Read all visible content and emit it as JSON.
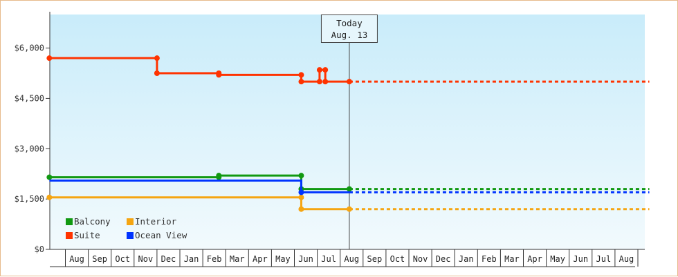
{
  "chart_data": {
    "type": "line",
    "step": true,
    "title": "",
    "xlabel": "",
    "ylabel": "",
    "ylim": [
      0,
      7000
    ],
    "y_ticks": [
      0,
      1500,
      3000,
      4500,
      6000
    ],
    "y_tick_labels": [
      "$0",
      "$1,500",
      "$3,000",
      "$4,500",
      "$6,000"
    ],
    "x_tick_labels": [
      "Aug",
      "Sep",
      "Oct",
      "Nov",
      "Dec",
      "Jan",
      "Feb",
      "Mar",
      "Apr",
      "May",
      "Jun",
      "Jul",
      "Aug",
      "Sep",
      "Oct",
      "Nov",
      "Dec",
      "Jan",
      "Feb",
      "Mar",
      "Apr",
      "May",
      "Jun",
      "Jul",
      "Aug"
    ],
    "today": {
      "line1": "Today",
      "line2": "Aug. 13",
      "x": 12.4
    },
    "legend": {
      "placement": "bottom-left",
      "columns": 2
    },
    "series": [
      {
        "name": "Balcony",
        "color": "#119911",
        "points": [
          [
            -0.7,
            2150
          ],
          [
            6.7,
            2150
          ],
          [
            6.7,
            2200
          ],
          [
            10.3,
            2200
          ],
          [
            10.3,
            1800
          ],
          [
            12.4,
            1800
          ]
        ],
        "markers": [
          [
            -0.7,
            2150
          ],
          [
            6.7,
            2150
          ],
          [
            6.7,
            2200
          ],
          [
            10.3,
            2200
          ],
          [
            10.3,
            1800
          ],
          [
            12.4,
            1800
          ]
        ],
        "projected": [
          [
            12.4,
            1800
          ],
          [
            25.5,
            1800
          ]
        ]
      },
      {
        "name": "Interior",
        "color": "#f5a512",
        "points": [
          [
            -0.7,
            1550
          ],
          [
            10.3,
            1550
          ],
          [
            10.3,
            1200
          ],
          [
            12.4,
            1200
          ]
        ],
        "markers": [
          [
            -0.7,
            1550
          ],
          [
            10.3,
            1550
          ],
          [
            10.3,
            1200
          ],
          [
            12.4,
            1200
          ]
        ],
        "projected": [
          [
            12.4,
            1200
          ],
          [
            25.5,
            1200
          ]
        ]
      },
      {
        "name": "Suite",
        "color": "#ff3300",
        "points": [
          [
            -0.7,
            5700
          ],
          [
            4.0,
            5700
          ],
          [
            4.0,
            5250
          ],
          [
            6.7,
            5250
          ],
          [
            6.7,
            5200
          ],
          [
            10.3,
            5200
          ],
          [
            10.3,
            5000
          ],
          [
            11.1,
            5000
          ],
          [
            11.1,
            5350
          ],
          [
            11.35,
            5350
          ],
          [
            11.35,
            5000
          ],
          [
            12.4,
            5000
          ]
        ],
        "markers": [
          [
            -0.7,
            5700
          ],
          [
            4.0,
            5700
          ],
          [
            4.0,
            5250
          ],
          [
            6.7,
            5250
          ],
          [
            6.7,
            5200
          ],
          [
            10.3,
            5200
          ],
          [
            10.3,
            5000
          ],
          [
            11.1,
            5000
          ],
          [
            11.1,
            5350
          ],
          [
            11.35,
            5350
          ],
          [
            11.35,
            5000
          ],
          [
            12.4,
            5000
          ]
        ],
        "projected": [
          [
            12.4,
            5000
          ],
          [
            25.5,
            5000
          ]
        ]
      },
      {
        "name": "Ocean View",
        "color": "#0033ff",
        "points": [
          [
            -0.7,
            2050
          ],
          [
            10.3,
            2050
          ],
          [
            10.3,
            1700
          ],
          [
            12.4,
            1700
          ]
        ],
        "markers": [
          [
            10.3,
            1700
          ]
        ],
        "projected": [
          [
            12.4,
            1700
          ],
          [
            25.5,
            1700
          ]
        ]
      }
    ]
  }
}
